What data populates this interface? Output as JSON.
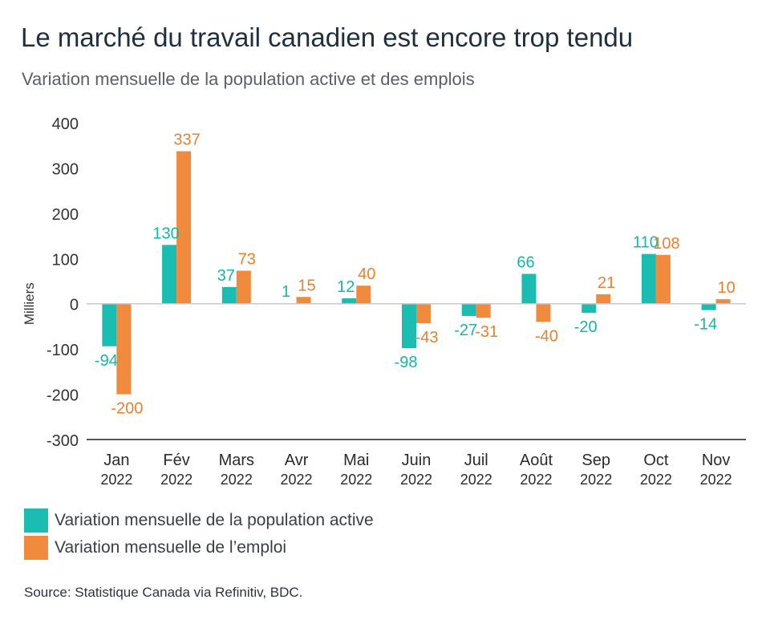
{
  "title": "Le marché du travail canadien est encore trop tendu",
  "subtitle": "Variation mensuelle de la population active et des emplois",
  "source": "Source: Statistique Canada via Refinitiv, BDC.",
  "colors": {
    "series1": "#1bbdb2",
    "series2": "#f08a3c",
    "axis": "#555555",
    "label1": "#17b5a9",
    "label2": "#ec7f2d"
  },
  "chart_data": {
    "type": "bar",
    "ylabel": "Milliers",
    "ylim": [
      -300,
      400
    ],
    "yticks": [
      "400",
      "300",
      "200",
      "100",
      "0",
      "-100",
      "-200",
      "-300"
    ],
    "categories": [
      {
        "month": "Jan",
        "year": "2022"
      },
      {
        "month": "Fév",
        "year": "2022"
      },
      {
        "month": "Mars",
        "year": "2022"
      },
      {
        "month": "Avr",
        "year": "2022"
      },
      {
        "month": "Mai",
        "year": "2022"
      },
      {
        "month": "Juin",
        "year": "2022"
      },
      {
        "month": "Juil",
        "year": "2022"
      },
      {
        "month": "Août",
        "year": "2022"
      },
      {
        "month": "Sep",
        "year": "2022"
      },
      {
        "month": "Oct",
        "year": "2022"
      },
      {
        "month": "Nov",
        "year": "2022"
      }
    ],
    "series": [
      {
        "name": "Variation mensuelle de la population active",
        "values": [
          -94,
          130,
          37,
          1,
          12,
          -98,
          -27,
          66,
          -20,
          110,
          -14
        ]
      },
      {
        "name": "Variation mensuelle de l’emploi",
        "values": [
          -200,
          337,
          73,
          15,
          40,
          -43,
          -31,
          -40,
          21,
          108,
          10
        ]
      }
    ],
    "legend_position": "bottom-left",
    "grid": false
  }
}
